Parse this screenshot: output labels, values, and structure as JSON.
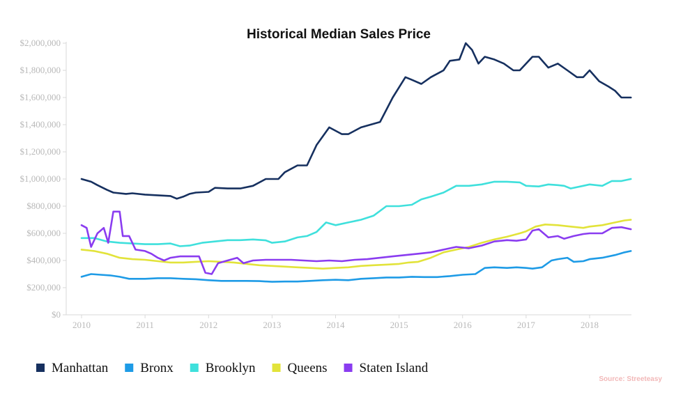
{
  "chart_data": {
    "type": "line",
    "title": "Historical Median Sales Price",
    "xlabel": "",
    "ylabel": "",
    "ylim": [
      0,
      2100000
    ],
    "xlim": [
      2009.9,
      2018.66
    ],
    "yticks": [
      0,
      200000,
      400000,
      600000,
      800000,
      1000000,
      1200000,
      1400000,
      1600000,
      1800000,
      2000000
    ],
    "ytick_labels": [
      "$0",
      "$200,000",
      "$400,000",
      "$600,000",
      "$800,000",
      "$1,000,000",
      "$1,200,000",
      "$1,400,000",
      "$1,600,000",
      "$1,800,000",
      "$2,000,000"
    ],
    "xticks": [
      2010,
      2011,
      2012,
      2013,
      2014,
      2015,
      2016,
      2017,
      2018
    ],
    "xtick_labels": [
      "2010",
      "2011",
      "2012",
      "2013",
      "2014",
      "2015",
      "2016",
      "2017",
      "2018"
    ],
    "grid": false,
    "legend_position": "bottom-left",
    "source_note": "Source: Streeteasy",
    "series": [
      {
        "name": "Manhattan",
        "color": "#16305f",
        "x": [
          2010.0,
          2010.15,
          2010.25,
          2010.4,
          2010.5,
          2010.7,
          2010.8,
          2011.0,
          2011.2,
          2011.4,
          2011.5,
          2011.6,
          2011.7,
          2011.8,
          2012.0,
          2012.1,
          2012.3,
          2012.5,
          2012.7,
          2012.9,
          2013.1,
          2013.2,
          2013.4,
          2013.55,
          2013.7,
          2013.9,
          2014.1,
          2014.2,
          2014.4,
          2014.55,
          2014.7,
          2014.9,
          2015.1,
          2015.2,
          2015.35,
          2015.5,
          2015.7,
          2015.8,
          2015.95,
          2016.05,
          2016.15,
          2016.25,
          2016.35,
          2016.5,
          2016.65,
          2016.8,
          2016.9,
          2017.1,
          2017.2,
          2017.35,
          2017.5,
          2017.65,
          2017.8,
          2017.9,
          2018.0,
          2018.15,
          2018.3,
          2018.4,
          2018.5,
          2018.65
        ],
        "values": [
          1000000,
          980000,
          955000,
          920000,
          900000,
          890000,
          895000,
          885000,
          880000,
          875000,
          855000,
          870000,
          890000,
          900000,
          905000,
          935000,
          930000,
          930000,
          950000,
          1000000,
          1000000,
          1050000,
          1100000,
          1100000,
          1250000,
          1380000,
          1330000,
          1330000,
          1380000,
          1400000,
          1420000,
          1600000,
          1750000,
          1730000,
          1700000,
          1750000,
          1800000,
          1870000,
          1880000,
          2000000,
          1950000,
          1850000,
          1900000,
          1880000,
          1850000,
          1800000,
          1800000,
          1900000,
          1900000,
          1820000,
          1850000,
          1800000,
          1750000,
          1750000,
          1800000,
          1720000,
          1680000,
          1650000,
          1600000,
          1600000
        ]
      },
      {
        "name": "Bronx",
        "color": "#1e9be6",
        "x": [
          2010.0,
          2010.15,
          2010.3,
          2010.45,
          2010.6,
          2010.75,
          2011.0,
          2011.2,
          2011.4,
          2011.6,
          2011.8,
          2012.0,
          2012.2,
          2012.4,
          2012.6,
          2012.8,
          2013.0,
          2013.2,
          2013.4,
          2013.6,
          2013.8,
          2014.0,
          2014.2,
          2014.4,
          2014.6,
          2014.8,
          2015.0,
          2015.2,
          2015.4,
          2015.6,
          2015.8,
          2016.0,
          2016.2,
          2016.35,
          2016.5,
          2016.7,
          2016.85,
          2017.0,
          2017.1,
          2017.25,
          2017.4,
          2017.5,
          2017.65,
          2017.75,
          2017.9,
          2018.0,
          2018.2,
          2018.4,
          2018.55,
          2018.65
        ],
        "values": [
          280000,
          300000,
          295000,
          290000,
          280000,
          265000,
          265000,
          270000,
          270000,
          265000,
          262000,
          255000,
          250000,
          250000,
          250000,
          248000,
          243000,
          245000,
          245000,
          250000,
          255000,
          258000,
          255000,
          265000,
          270000,
          275000,
          275000,
          280000,
          278000,
          278000,
          285000,
          295000,
          300000,
          345000,
          350000,
          345000,
          350000,
          345000,
          340000,
          350000,
          400000,
          410000,
          420000,
          390000,
          395000,
          410000,
          420000,
          440000,
          460000,
          470000
        ]
      },
      {
        "name": "Brooklyn",
        "color": "#3fe0dc",
        "x": [
          2010.0,
          2010.2,
          2010.4,
          2010.6,
          2010.8,
          2011.0,
          2011.2,
          2011.4,
          2011.55,
          2011.7,
          2011.9,
          2012.1,
          2012.3,
          2012.5,
          2012.7,
          2012.9,
          2013.0,
          2013.2,
          2013.4,
          2013.55,
          2013.7,
          2013.85,
          2014.0,
          2014.2,
          2014.4,
          2014.6,
          2014.8,
          2015.0,
          2015.2,
          2015.35,
          2015.5,
          2015.7,
          2015.9,
          2016.1,
          2016.3,
          2016.5,
          2016.7,
          2016.9,
          2017.0,
          2017.2,
          2017.35,
          2017.5,
          2017.6,
          2017.7,
          2017.9,
          2018.0,
          2018.2,
          2018.35,
          2018.5,
          2018.65
        ],
        "values": [
          565000,
          565000,
          540000,
          530000,
          525000,
          520000,
          520000,
          525000,
          505000,
          510000,
          530000,
          540000,
          550000,
          550000,
          555000,
          548000,
          530000,
          540000,
          570000,
          580000,
          610000,
          680000,
          660000,
          680000,
          700000,
          730000,
          800000,
          800000,
          810000,
          850000,
          870000,
          900000,
          950000,
          950000,
          960000,
          980000,
          980000,
          975000,
          950000,
          945000,
          960000,
          955000,
          950000,
          930000,
          950000,
          960000,
          950000,
          985000,
          985000,
          1000000
        ]
      },
      {
        "name": "Queens",
        "color": "#e2e33a",
        "x": [
          2010.0,
          2010.2,
          2010.4,
          2010.6,
          2010.8,
          2011.0,
          2011.2,
          2011.4,
          2011.6,
          2011.8,
          2012.0,
          2012.2,
          2012.4,
          2012.6,
          2012.8,
          2013.0,
          2013.2,
          2013.4,
          2013.6,
          2013.8,
          2014.0,
          2014.2,
          2014.4,
          2014.6,
          2014.8,
          2015.0,
          2015.15,
          2015.3,
          2015.5,
          2015.7,
          2015.9,
          2016.1,
          2016.3,
          2016.5,
          2016.7,
          2016.9,
          2017.0,
          2017.15,
          2017.3,
          2017.5,
          2017.7,
          2017.9,
          2018.0,
          2018.2,
          2018.4,
          2018.55,
          2018.65
        ],
        "values": [
          480000,
          470000,
          450000,
          420000,
          410000,
          405000,
          395000,
          385000,
          385000,
          390000,
          395000,
          390000,
          385000,
          375000,
          365000,
          360000,
          355000,
          350000,
          345000,
          340000,
          345000,
          350000,
          360000,
          365000,
          370000,
          375000,
          385000,
          390000,
          420000,
          460000,
          480000,
          500000,
          530000,
          555000,
          575000,
          600000,
          615000,
          650000,
          665000,
          660000,
          650000,
          640000,
          650000,
          660000,
          680000,
          695000,
          700000
        ]
      },
      {
        "name": "Staten Island",
        "color": "#8a3cf0",
        "x": [
          2010.0,
          2010.08,
          2010.15,
          2010.25,
          2010.35,
          2010.42,
          2010.5,
          2010.6,
          2010.65,
          2010.75,
          2010.85,
          2011.0,
          2011.1,
          2011.2,
          2011.3,
          2011.4,
          2011.55,
          2011.7,
          2011.85,
          2011.95,
          2012.05,
          2012.15,
          2012.3,
          2012.45,
          2012.55,
          2012.7,
          2012.9,
          2013.1,
          2013.3,
          2013.5,
          2013.7,
          2013.9,
          2014.1,
          2014.3,
          2014.5,
          2014.7,
          2014.9,
          2015.1,
          2015.3,
          2015.5,
          2015.7,
          2015.9,
          2016.1,
          2016.3,
          2016.5,
          2016.7,
          2016.85,
          2017.0,
          2017.1,
          2017.2,
          2017.35,
          2017.5,
          2017.6,
          2017.75,
          2017.9,
          2018.0,
          2018.2,
          2018.35,
          2018.5,
          2018.65
        ],
        "values": [
          660000,
          640000,
          500000,
          600000,
          640000,
          530000,
          760000,
          760000,
          580000,
          580000,
          480000,
          470000,
          450000,
          420000,
          400000,
          420000,
          430000,
          430000,
          430000,
          310000,
          300000,
          380000,
          400000,
          420000,
          380000,
          400000,
          405000,
          405000,
          405000,
          400000,
          395000,
          400000,
          395000,
          405000,
          410000,
          420000,
          430000,
          440000,
          450000,
          460000,
          480000,
          500000,
          490000,
          510000,
          540000,
          550000,
          545000,
          555000,
          620000,
          630000,
          570000,
          580000,
          560000,
          580000,
          595000,
          600000,
          600000,
          640000,
          645000,
          630000
        ]
      }
    ]
  }
}
